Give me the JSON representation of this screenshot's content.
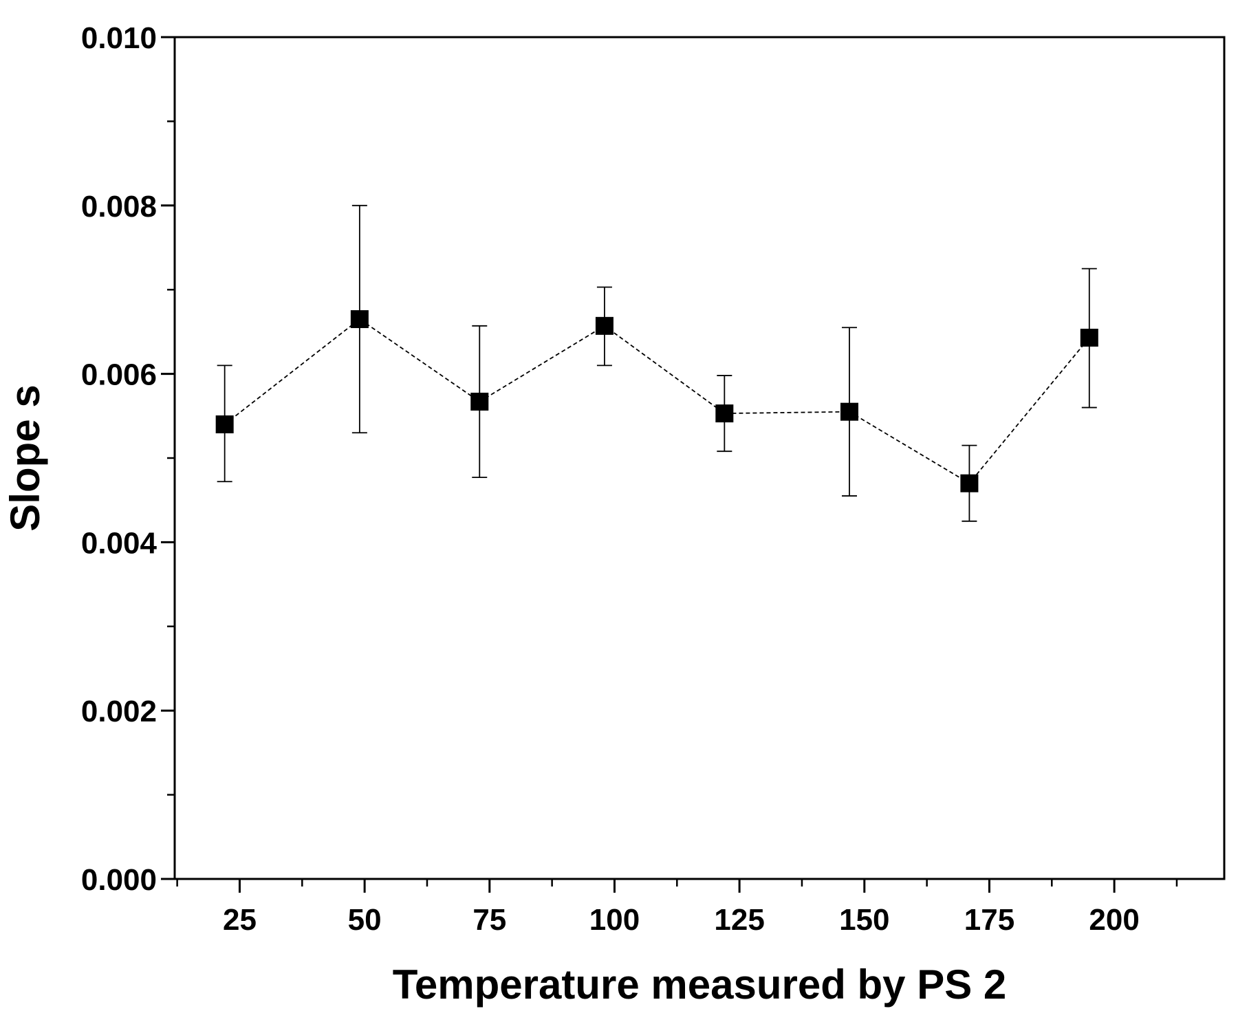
{
  "chart_data": {
    "type": "scatter",
    "title": "",
    "xlabel": "Temperature measured by PS 2",
    "ylabel": "Slope s",
    "xlim": [
      12,
      222
    ],
    "ylim": [
      0,
      0.01
    ],
    "x_ticks": [
      25,
      50,
      75,
      100,
      125,
      150,
      175,
      200
    ],
    "x_tick_labels": [
      "25",
      "50",
      "75",
      "100",
      "125",
      "150",
      "175",
      "200"
    ],
    "x_minor_ticks": [
      12.5,
      37.5,
      62.5,
      87.5,
      112.5,
      137.5,
      162.5,
      187.5,
      212.5
    ],
    "y_ticks": [
      0,
      0.002,
      0.004,
      0.006,
      0.008,
      0.01
    ],
    "y_tick_labels": [
      "0.000",
      "0.002",
      "0.004",
      "0.006",
      "0.008",
      "0.010"
    ],
    "y_minor_ticks": [
      0.001,
      0.003,
      0.005,
      0.007,
      0.009
    ],
    "grid": false,
    "legend": "none",
    "connect_points": "dashed",
    "marker": "square",
    "color": "#000000",
    "series": [
      {
        "name": "Slope s",
        "x": [
          22,
          49,
          73,
          98,
          122,
          147,
          171,
          195
        ],
        "y": [
          0.0054,
          0.00665,
          0.00567,
          0.00657,
          0.00553,
          0.00555,
          0.0047,
          0.00643
        ],
        "err_low": [
          0.00472,
          0.0053,
          0.00477,
          0.0061,
          0.00508,
          0.00455,
          0.00425,
          0.0056
        ],
        "err_high": [
          0.0061,
          0.008,
          0.00657,
          0.00703,
          0.00598,
          0.00655,
          0.00515,
          0.00725
        ]
      }
    ]
  }
}
